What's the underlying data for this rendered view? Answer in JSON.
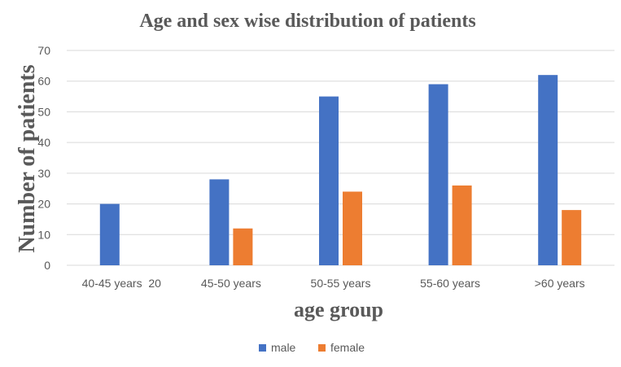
{
  "chart_data": {
    "type": "bar",
    "title": "Age and sex wise distribution of patients",
    "xlabel": "age group",
    "ylabel": "Number of patients",
    "categories": [
      "40-45 years  20",
      "45-50 years",
      "50-55 years",
      "55-60 years",
      ">60 years"
    ],
    "series": [
      {
        "name": "male",
        "color": "#4472C4",
        "values": [
          20,
          28,
          55,
          59,
          62
        ]
      },
      {
        "name": "female",
        "color": "#ED7D31",
        "values": [
          0,
          12,
          24,
          26,
          18
        ]
      }
    ],
    "ylim": [
      0,
      70
    ],
    "yticks": [
      0,
      10,
      20,
      30,
      40,
      50,
      60,
      70
    ],
    "grid": true,
    "legend_position": "bottom"
  }
}
